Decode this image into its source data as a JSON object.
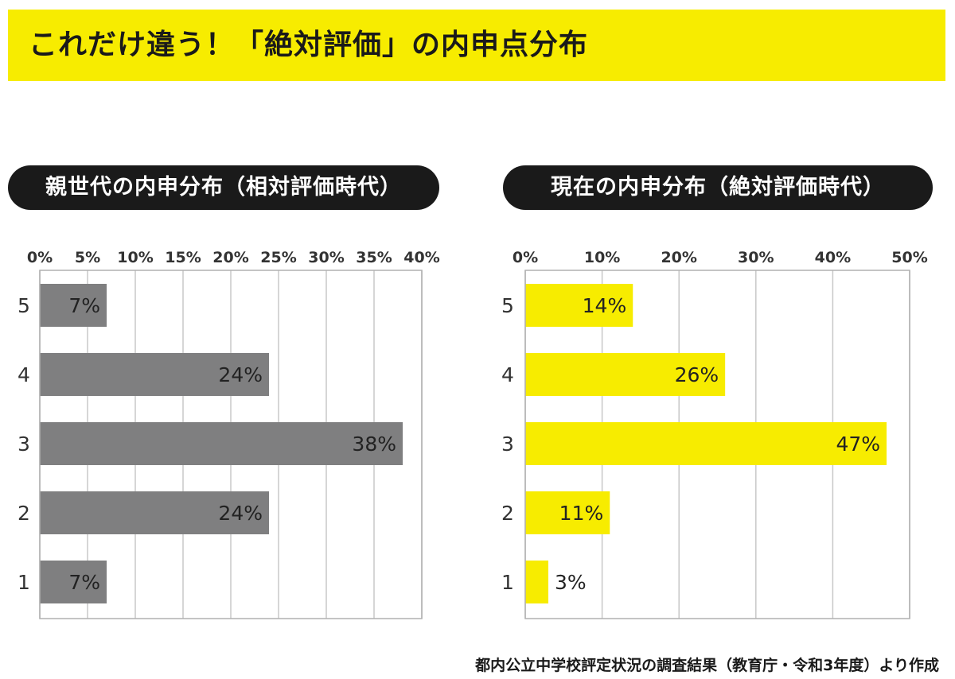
{
  "title": "これだけ違う！「絶対評価」の内申点分布",
  "source": "都内公立中学校評定状況の調査結果（教育庁・令和3年度）より作成",
  "colors": {
    "banner": "#f7ec00",
    "left_bar": "#7f7f80",
    "right_bar": "#f7ec00",
    "pill": "#1a1a1a"
  },
  "chart_data": [
    {
      "type": "bar",
      "orientation": "horizontal",
      "title": "親世代の内申分布（相対評価時代）",
      "categories": [
        "5",
        "4",
        "3",
        "2",
        "1"
      ],
      "values": [
        7,
        24,
        38,
        24,
        7
      ],
      "value_labels": [
        "7%",
        "24%",
        "38%",
        "24%",
        "7%"
      ],
      "xlim": [
        0,
        40
      ],
      "xticks": [
        0,
        5,
        10,
        15,
        20,
        25,
        30,
        35,
        40
      ],
      "xtick_labels": [
        "0%",
        "5%",
        "10%",
        "15%",
        "20%",
        "25%",
        "30%",
        "35%",
        "40%"
      ],
      "grid": true,
      "bar_color": "#7f7f80"
    },
    {
      "type": "bar",
      "orientation": "horizontal",
      "title": "現在の内申分布（絶対評価時代）",
      "categories": [
        "5",
        "4",
        "3",
        "2",
        "1"
      ],
      "values": [
        14,
        26,
        47,
        11,
        3
      ],
      "value_labels": [
        "14%",
        "26%",
        "47%",
        "11%",
        "3%"
      ],
      "xlim": [
        0,
        50
      ],
      "xticks": [
        0,
        10,
        20,
        30,
        40,
        50
      ],
      "xtick_labels": [
        "0%",
        "10%",
        "20%",
        "30%",
        "40%",
        "50%"
      ],
      "grid": true,
      "bar_color": "#f7ec00"
    }
  ]
}
